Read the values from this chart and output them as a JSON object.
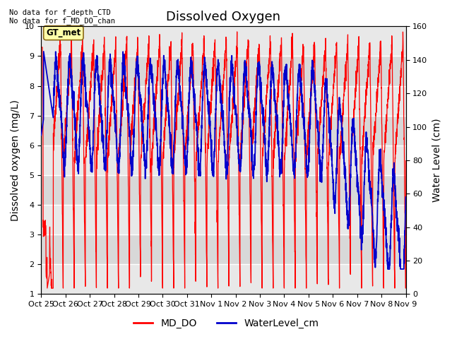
{
  "title": "Dissolved Oxygen",
  "ylabel_left": "Dissolved oxygen (mg/L)",
  "ylabel_right": "Water Level (cm)",
  "ylim_left": [
    1.0,
    10.0
  ],
  "ylim_right": [
    0,
    160
  ],
  "yticks_left": [
    1.0,
    2.0,
    3.0,
    4.0,
    5.0,
    6.0,
    7.0,
    8.0,
    9.0,
    10.0
  ],
  "yticks_right": [
    0,
    20,
    40,
    60,
    80,
    100,
    120,
    140,
    160
  ],
  "xtick_labels": [
    "Oct 25",
    "Oct 26",
    "Oct 27",
    "Oct 28",
    "Oct 29",
    "Oct 30",
    "Oct 31",
    "Nov 1",
    "Nov 2",
    "Nov 3",
    "Nov 4",
    "Nov 5",
    "Nov 6",
    "Nov 7",
    "Nov 8",
    "Nov 9"
  ],
  "annotation_text": "No data for f_depth_CTD\nNo data for f_MD_DO_chan",
  "box_label": "GT_met",
  "md_do_color": "#FF0000",
  "water_level_color": "#0000CC",
  "background_color": "#FFFFFF",
  "legend_md_do": "MD_DO",
  "legend_water": "WaterLevel_cm",
  "title_fontsize": 13,
  "axis_label_fontsize": 10,
  "tick_fontsize": 8,
  "legend_fontsize": 10,
  "band1_color": "#D8D8D8",
  "band2_color": "#E8E8E8"
}
